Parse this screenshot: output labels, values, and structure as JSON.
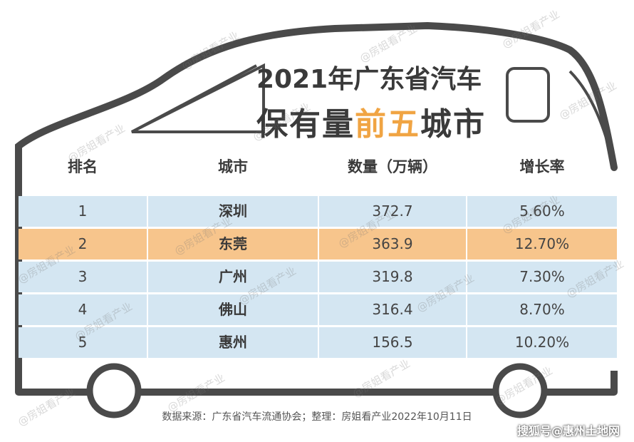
{
  "title": {
    "line1": "2021年广东省汽车",
    "line2_prefix": "保有量",
    "line2_accent": "前五",
    "line2_suffix": "城市"
  },
  "table": {
    "headers": [
      "排名",
      "城市",
      "数量（万辆）",
      "增长率"
    ],
    "rows": [
      {
        "rank": "1",
        "city": "深圳",
        "count": "372.7",
        "growth": "5.60%",
        "highlight": false
      },
      {
        "rank": "2",
        "city": "东莞",
        "count": "363.9",
        "growth": "12.70%",
        "highlight": true
      },
      {
        "rank": "3",
        "city": "广州",
        "count": "319.8",
        "growth": "7.30%",
        "highlight": false
      },
      {
        "rank": "4",
        "city": "佛山",
        "count": "316.4",
        "growth": "8.70%",
        "highlight": false
      },
      {
        "rank": "5",
        "city": "惠州",
        "count": "156.5",
        "growth": "10.20%",
        "highlight": false
      }
    ]
  },
  "source_note": "数据来源：广东省汽车流通协会；整理：房姐看产业2022年10月11日",
  "watermark": "@房姐看产业",
  "platform_label": "搜狐号@惠州土地网",
  "colors": {
    "row_blue": "#d4e6f2",
    "row_highlight": "#f7c58c",
    "accent": "#f0a443",
    "outline": "#4a4a4a"
  }
}
